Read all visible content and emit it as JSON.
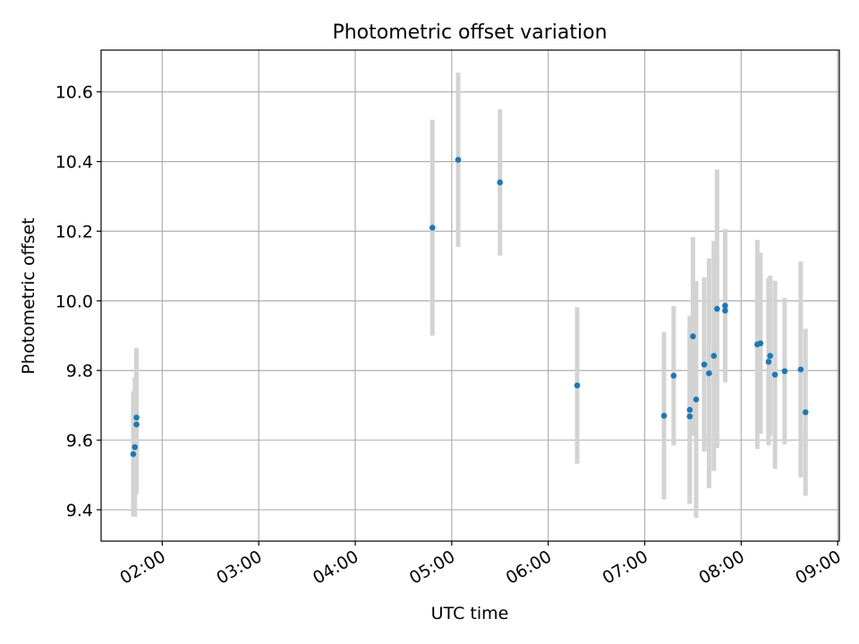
{
  "chart_data": {
    "type": "scatter",
    "title": "Photometric offset variation",
    "xlabel": "UTC time",
    "ylabel": "Photometric offset",
    "x_axis_type": "time",
    "xlim": [
      "01:22",
      "09:01"
    ],
    "ylim": [
      9.31,
      10.72
    ],
    "xticks": [
      "02:00",
      "03:00",
      "04:00",
      "05:00",
      "06:00",
      "07:00",
      "08:00",
      "09:00"
    ],
    "yticks": [
      9.4,
      9.6,
      9.8,
      10.0,
      10.2,
      10.4,
      10.6
    ],
    "ytick_labels": [
      "9.4",
      "9.6",
      "9.8",
      "10.0",
      "10.2",
      "10.4",
      "10.6"
    ],
    "grid": true,
    "marker_color": "#1f77b4",
    "errorbar_color": "#d3d3d3",
    "points": [
      {
        "x": "01:42",
        "y": 9.56,
        "err": 0.18
      },
      {
        "x": "01:43",
        "y": 9.58,
        "err": 0.2
      },
      {
        "x": "01:44",
        "y": 9.645,
        "err": 0.2
      },
      {
        "x": "01:44",
        "y": 9.665,
        "err": 0.2
      },
      {
        "x": "04:48",
        "y": 10.21,
        "err": 0.31
      },
      {
        "x": "05:04",
        "y": 10.405,
        "err": 0.25
      },
      {
        "x": "05:30",
        "y": 10.34,
        "err": 0.21
      },
      {
        "x": "06:18",
        "y": 9.757,
        "err": 0.225
      },
      {
        "x": "07:12",
        "y": 9.67,
        "err": 0.24
      },
      {
        "x": "07:18",
        "y": 9.785,
        "err": 0.2
      },
      {
        "x": "07:28",
        "y": 9.668,
        "err": 0.25
      },
      {
        "x": "07:28",
        "y": 9.687,
        "err": 0.27
      },
      {
        "x": "07:30",
        "y": 9.898,
        "err": 0.285
      },
      {
        "x": "07:32",
        "y": 9.717,
        "err": 0.34
      },
      {
        "x": "07:37",
        "y": 9.817,
        "err": 0.25
      },
      {
        "x": "07:40",
        "y": 9.792,
        "err": 0.33
      },
      {
        "x": "07:43",
        "y": 9.842,
        "err": 0.33
      },
      {
        "x": "07:45",
        "y": 9.977,
        "err": 0.4
      },
      {
        "x": "07:50",
        "y": 9.972,
        "err": 0.2
      },
      {
        "x": "07:50",
        "y": 9.986,
        "err": 0.22
      },
      {
        "x": "08:10",
        "y": 9.875,
        "err": 0.3
      },
      {
        "x": "08:12",
        "y": 9.878,
        "err": 0.26
      },
      {
        "x": "08:17",
        "y": 9.825,
        "err": 0.24
      },
      {
        "x": "08:18",
        "y": 9.842,
        "err": 0.23
      },
      {
        "x": "08:21",
        "y": 9.788,
        "err": 0.27
      },
      {
        "x": "08:27",
        "y": 9.798,
        "err": 0.21
      },
      {
        "x": "08:37",
        "y": 9.803,
        "err": 0.31
      },
      {
        "x": "08:40",
        "y": 9.68,
        "err": 0.24
      }
    ]
  }
}
